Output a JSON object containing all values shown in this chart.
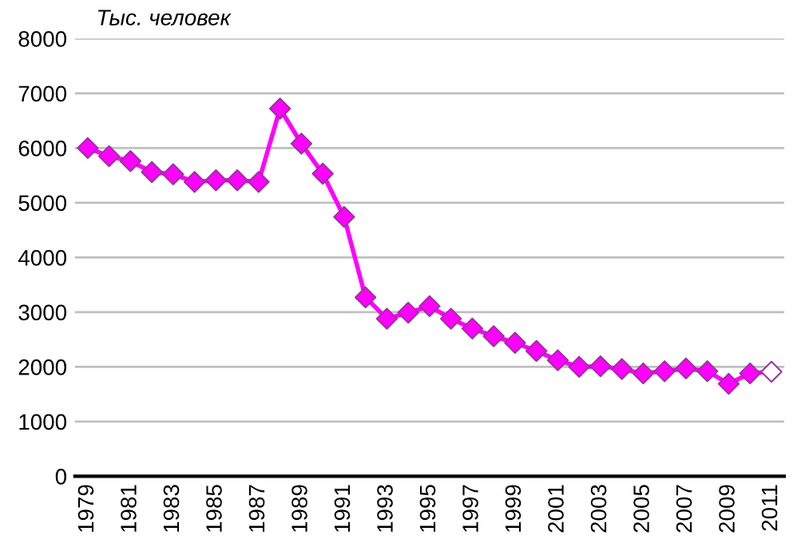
{
  "chart_data": {
    "type": "line",
    "ylabel": "Тыс. человек",
    "categories": [
      "1979",
      null,
      "1981",
      null,
      "1983",
      null,
      "1985",
      null,
      "1987",
      null,
      "1989",
      null,
      "1991",
      null,
      "1993",
      null,
      "1995",
      null,
      "1997",
      null,
      "1999",
      null,
      "2001",
      null,
      "2003",
      null,
      "2005",
      null,
      "2007",
      null,
      "2009",
      null,
      "2011"
    ],
    "series": [
      {
        "color": "#ff00ff",
        "values": [
          6000,
          5850,
          5760,
          5560,
          5520,
          5380,
          5410,
          5410,
          5380,
          6720,
          6080,
          5530,
          4740,
          3270,
          2880,
          2990,
          3110,
          2880,
          2700,
          2560,
          2440,
          2290,
          2120,
          2000,
          2010,
          1960,
          1880,
          1920,
          1970,
          1920,
          1690,
          1880,
          1910
        ],
        "colors": [
          "#ff00ff",
          "#ff00ff",
          "#ff00ff",
          "#ff00ff",
          "#ff00ff",
          "#ff00ff",
          "#ff00ff",
          "#ff00ff",
          "#ff00ff",
          "#ff00ff",
          "#ff00ff",
          "#ff00ff",
          "#ff00ff",
          "#ff00ff",
          "#ff00ff",
          "#ff00ff",
          "#ff00ff",
          "#ff00ff",
          "#ff00ff",
          "#ff00ff",
          "#ff00ff",
          "#ff00ff",
          "#ff00ff",
          "#ff00ff",
          "#ff00ff",
          "#ff00ff",
          "#ff00ff",
          "#ff00ff",
          "#ff00ff",
          "#ff00ff",
          "#ff00ff",
          "#ff00ff",
          "#ffffff"
        ]
      }
    ],
    "ylim": [
      0,
      8000
    ],
    "yticks": [
      0,
      1000,
      2000,
      3000,
      4000,
      5000,
      6000,
      7000,
      8000
    ],
    "grid": "y",
    "marker": "diamond",
    "line_style": "solid"
  }
}
